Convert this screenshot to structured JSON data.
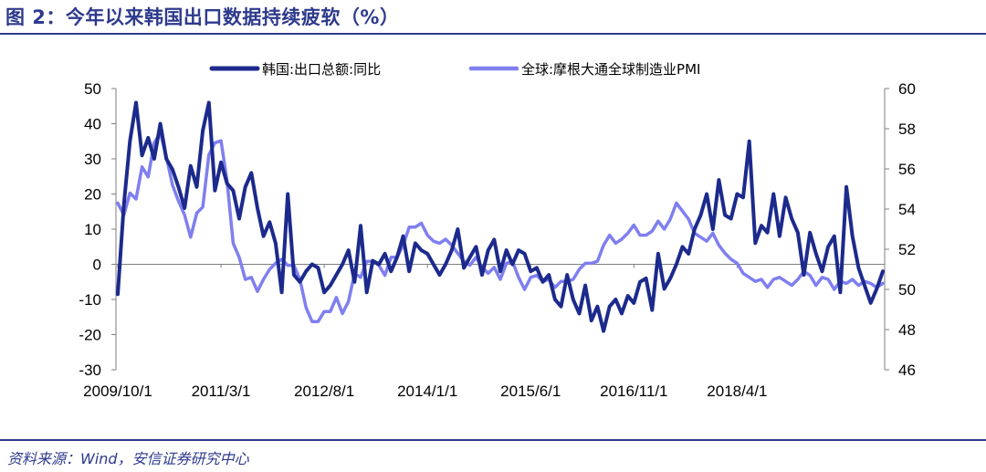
{
  "header": {
    "title": "图 2：今年以来韩国出口数据持续疲软（%）"
  },
  "footer": {
    "source": "资料来源：Wind，安信证券研究中心"
  },
  "chart_data": {
    "type": "line",
    "grid": false,
    "legend_position": "top",
    "x_tick_labels": [
      "2009/10/1",
      "2011/3/1",
      "2012/8/1",
      "2014/1/1",
      "2015/6/1",
      "2016/11/1",
      "2018/4/1"
    ],
    "x_start": "2009/10",
    "x_end": "2019/3",
    "y_left": {
      "lim": [
        -30,
        50
      ],
      "ticks": [
        50,
        40,
        30,
        20,
        10,
        0,
        -10,
        -20,
        -30
      ]
    },
    "y_right": {
      "lim": [
        46,
        60
      ],
      "ticks": [
        60,
        58,
        56,
        54,
        52,
        50,
        48,
        46
      ]
    },
    "series": [
      {
        "name": "韩国:出口总额:同比",
        "axis": "left",
        "color": "#1c2a8c",
        "values": [
          -8.5,
          17,
          35,
          46,
          31,
          36,
          30,
          40,
          30,
          27,
          22,
          16,
          28,
          22,
          38,
          46,
          21,
          29,
          23,
          21,
          13,
          22,
          26,
          16,
          8,
          12,
          6,
          -8,
          20,
          -3,
          -5,
          -2,
          0,
          -1,
          -8,
          -6,
          -3,
          0,
          4,
          -5,
          11,
          -8,
          1,
          0,
          3,
          -2,
          2,
          8,
          -2,
          6,
          4,
          3,
          0,
          -3,
          0,
          4,
          10,
          -1,
          2,
          5,
          -3,
          4,
          7,
          -2,
          4,
          0,
          4,
          3,
          -2,
          -1,
          -5,
          -3,
          -10,
          -12,
          -3,
          -10,
          -14,
          -6,
          -16,
          -12,
          -19,
          -12,
          -10,
          -14,
          -9,
          -11,
          -5,
          -4,
          -13,
          3,
          -7,
          -4,
          0,
          5,
          3,
          10,
          14,
          20,
          10,
          24,
          14,
          13,
          20,
          19,
          35,
          6,
          11,
          9,
          20,
          8,
          19,
          13,
          9,
          -3,
          9,
          3,
          -2,
          5,
          8,
          -8,
          22,
          8,
          -1,
          -6,
          -11,
          -7,
          -2
        ]
      },
      {
        "name": "全球:摩根大通全球制造业PMI",
        "axis": "right",
        "color": "#7f7ff0",
        "values": [
          54.3,
          53.7,
          54.8,
          54.5,
          56.1,
          55.6,
          57.3,
          57.8,
          56.6,
          55.2,
          54.4,
          53.7,
          52.6,
          53.8,
          54.1,
          56.7,
          57.3,
          57.4,
          55.4,
          52.3,
          51.6,
          50.5,
          50.6,
          49.9,
          50.5,
          51.0,
          51.3,
          51.5,
          51.2,
          51.2,
          50.5,
          49.1,
          48.4,
          48.4,
          48.9,
          48.9,
          49.6,
          48.8,
          49.4,
          50.8,
          50.6,
          51.4,
          51.4,
          51.2,
          50.7,
          51.6,
          51.6,
          52.2,
          53.1,
          53.1,
          53.3,
          52.7,
          52.4,
          52.3,
          52.5,
          52.2,
          51.8,
          51.4,
          51.2,
          51.6,
          51.1,
          50.8,
          51.1,
          50.5,
          51.3,
          51.4,
          50.6,
          50.0,
          50.6,
          50.7,
          50.4,
          50.5,
          50.1,
          50.4,
          50.4,
          50.5,
          51.0,
          51.3,
          51.3,
          51.4,
          52.2,
          52.7,
          52.3,
          52.5,
          52.8,
          53.2,
          52.7,
          52.7,
          52.9,
          53.4,
          53.0,
          53.5,
          54.3,
          53.9,
          53.5,
          52.8,
          52.6,
          52.4,
          52.8,
          52.2,
          51.8,
          51.5,
          51.3,
          50.8,
          50.6,
          50.4,
          50.5,
          50.1,
          50.5,
          50.6,
          50.4,
          50.2,
          50.5,
          50.9,
          50.7,
          50.2,
          50.6,
          50.5,
          50.0,
          50.4,
          50.3,
          50.5,
          50.2,
          50.4,
          50.3,
          50.1,
          50.3
        ]
      }
    ]
  }
}
